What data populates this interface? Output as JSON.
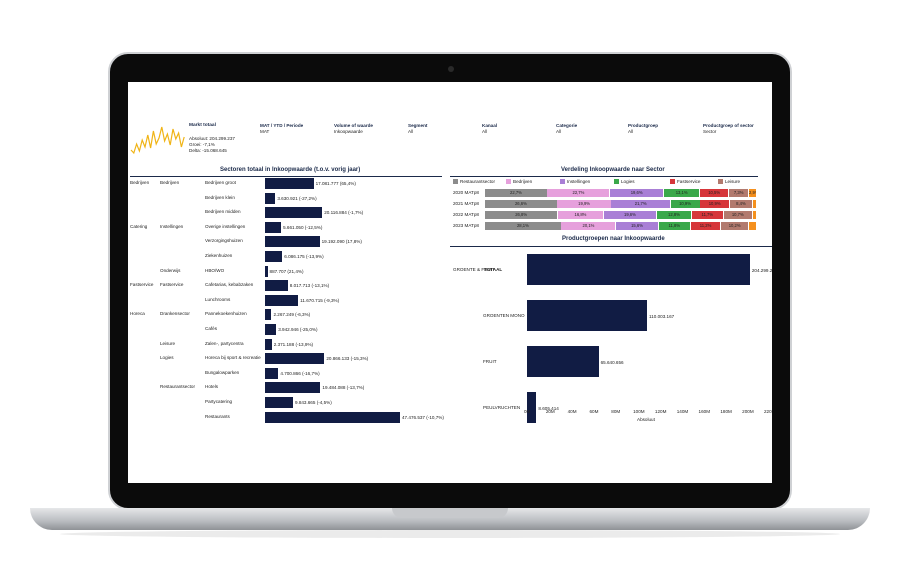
{
  "colors": {
    "navy": "#111c44",
    "spark": "#f0b416",
    "restaurant": "#8c8c8c",
    "bedrijven": "#e6a0dc",
    "instellingen": "#a97fd6",
    "logies": "#3aa84a",
    "fastservice": "#d6363a",
    "leisure": "#b27a6e",
    "drank": "#f5901e"
  },
  "header": {
    "markt_title": "Markt totaal",
    "absoluut": "Absoluut: 204.299.237",
    "groei": "Groei: -7,1%",
    "delta": "Delta: -15.068.645",
    "filters": [
      {
        "label": "MAT / YTD / Periode",
        "value": "MAT"
      },
      {
        "label": "Volume of waarde",
        "value": "Inkoopwaarde"
      },
      {
        "label": "Segment",
        "value": "All"
      },
      {
        "label": "Kanaal",
        "value": "All"
      },
      {
        "label": "Categorie",
        "value": "All"
      },
      {
        "label": "Productgroep",
        "value": "All"
      },
      {
        "label": "Productgroep of sector",
        "value": "Sector"
      }
    ]
  },
  "sectors_chart": {
    "title": "Sectoren totaal in Inkoopwaarde (t.o.v. vorig jaar)",
    "level1": [
      {
        "label": "Bedrijven",
        "row": 0
      },
      {
        "label": "Catering",
        "row": 3
      },
      {
        "label": "Fastservice",
        "row": 7
      },
      {
        "label": "Horeca",
        "row": 9
      }
    ],
    "level2": [
      {
        "label": "Bedrijven",
        "row": 0
      },
      {
        "label": "Instellingen",
        "row": 3
      },
      {
        "label": "Onderwijs",
        "row": 6
      },
      {
        "label": "Fastservice",
        "row": 7
      },
      {
        "label": "Drankensector",
        "row": 9
      },
      {
        "label": "Leisure",
        "row": 11
      },
      {
        "label": "Logies",
        "row": 12
      },
      {
        "label": "Restaurantsector",
        "row": 14
      }
    ],
    "rows": [
      {
        "label": "Bedrijven groot",
        "value": 17081777,
        "text": "17.081.777 (65,4%)"
      },
      {
        "label": "Bedrijven klein",
        "value": 3630921,
        "text": "3.630.921 (-27,2%)"
      },
      {
        "label": "Bedrijven midden",
        "value": 20116884,
        "text": "20.116.884 (-1,7%)"
      },
      {
        "label": "Overige instellingen",
        "value": 5661050,
        "text": "5.661.050 (-12,5%)"
      },
      {
        "label": "Verzorgingshuizen",
        "value": 19192090,
        "text": "19.192.090 (17,8%)"
      },
      {
        "label": "Ziekenhuizen",
        "value": 6086175,
        "text": "6.086.175 (-13,9%)"
      },
      {
        "label": "HBO/WO",
        "value": 887707,
        "text": "887.707 (21,4%)"
      },
      {
        "label": "Cafetarias, kebabzaken",
        "value": 8017713,
        "text": "8.017.713 (-13,1%)"
      },
      {
        "label": "Lunchrooms",
        "value": 11670715,
        "text": "11.670.715 (-9,3%)"
      },
      {
        "label": "Pannekoekenhuizen",
        "value": 2267249,
        "text": "2.267.249 (-6,3%)"
      },
      {
        "label": "Cafés",
        "value": 3942946,
        "text": "3.942.946 (-25,0%)"
      },
      {
        "label": "Zalen-, partycentra",
        "value": 2371188,
        "text": "2.371.188 (-13,9%)"
      },
      {
        "label": "Horeca bij sport & recreatie",
        "value": 20866133,
        "text": "20.866.133 (-15,3%)"
      },
      {
        "label": "Bungalowparken",
        "value": 4700866,
        "text": "4.700.866 (-16,7%)"
      },
      {
        "label": "Hotels",
        "value": 19484088,
        "text": "19.484.088 (-13,7%)"
      },
      {
        "label": "Partycatering",
        "value": 9843665,
        "text": "9.843.665 (-4,5%)"
      },
      {
        "label": "Restaurants",
        "value": 47476537,
        "text": "47.476.537 (-10,7%)"
      }
    ]
  },
  "verdeling": {
    "title": "Verdeling Inkoopwaarde naar Sector",
    "legend": [
      "Restaurantsector",
      "Bedrijven",
      "Instellingen",
      "Logies",
      "Fastservice",
      "Leisure"
    ],
    "series_order": [
      "restaurant",
      "bedrijven",
      "instellingen",
      "logies",
      "fastservice",
      "leisure",
      "drank"
    ],
    "rows": [
      {
        "label": "2020 MATp8",
        "values": [
          22.7,
          22.7,
          19.6,
          13.1,
          10.5,
          7.3,
          2.9
        ],
        "labels": [
          "22,7%",
          "22,7%",
          "19,6%",
          "13,1%",
          "10,5%",
          "7,3%",
          "2,9%"
        ]
      },
      {
        "label": "2021 MATp8",
        "values": [
          26.6,
          19.9,
          21.7,
          10.9,
          10.9,
          8.4,
          1.6
        ],
        "labels": [
          "26,6%",
          "19,9%",
          "21,7%",
          "10,9%",
          "10,9%",
          "8,4%",
          ""
        ]
      },
      {
        "label": "2022 MATp8",
        "values": [
          26.8,
          16.8,
          19.6,
          12.8,
          11.7,
          10.7,
          1.6
        ],
        "labels": [
          "26,8%",
          "16,8%",
          "19,6%",
          "12,8%",
          "11,7%",
          "10,7%",
          ""
        ]
      },
      {
        "label": "2023 MATp8",
        "values": [
          28.1,
          20.1,
          15.6,
          11.8,
          11.2,
          10.2,
          3.0
        ],
        "labels": [
          "28,1%",
          "20,1%",
          "15,6%",
          "11,8%",
          "11,2%",
          "10,2%",
          ""
        ]
      }
    ]
  },
  "productgroepen": {
    "title": "Productgroepen naar Inkoopwaarde",
    "group_label": "GROENTE & FRUIT",
    "xlabel": "Absoluut",
    "x_ticks": [
      "0M",
      "20M",
      "40M",
      "60M",
      "80M",
      "100M",
      "120M",
      "140M",
      "160M",
      "180M",
      "200M",
      "220M"
    ],
    "xmax": 220000000,
    "rows": [
      {
        "label": "TOTAAL",
        "value": 204299237,
        "text": "204.299.237"
      },
      {
        "label": "GROENTEN MONO",
        "value": 110003167,
        "text": "110.003.167"
      },
      {
        "label": "FRUIT",
        "value": 65640656,
        "text": "65.640.656"
      },
      {
        "label": "PEULVRUCHTEN",
        "value": 8605414,
        "text": "8.605.414"
      }
    ]
  },
  "chart_data": [
    {
      "type": "bar",
      "title": "Sectoren totaal in Inkoopwaarde (t.o.v. vorig jaar)",
      "categories": [
        "Bedrijven groot",
        "Bedrijven klein",
        "Bedrijven midden",
        "Overige instellingen",
        "Verzorgingshuizen",
        "Ziekenhuizen",
        "HBO/WO",
        "Cafetarias, kebabzaken",
        "Lunchrooms",
        "Pannekoekenhuizen",
        "Cafés",
        "Zalen-, partycentra",
        "Horeca bij sport & recreatie",
        "Bungalowparken",
        "Hotels",
        "Partycatering",
        "Restaurants"
      ],
      "values": [
        17081777,
        3630921,
        20116884,
        5661050,
        19192090,
        6086175,
        887707,
        8017713,
        11670715,
        2267249,
        3942946,
        2371188,
        20866133,
        4700866,
        19484088,
        9843665,
        47476537
      ]
    },
    {
      "type": "bar",
      "title": "Productgroepen naar Inkoopwaarde",
      "categories": [
        "TOTAAL",
        "GROENTEN MONO",
        "FRUIT",
        "PEULVRUCHTEN"
      ],
      "values": [
        204299237,
        110003167,
        65640656,
        8605414
      ],
      "xlabel": "Absoluut",
      "xlim": [
        0,
        220000000
      ]
    }
  ]
}
